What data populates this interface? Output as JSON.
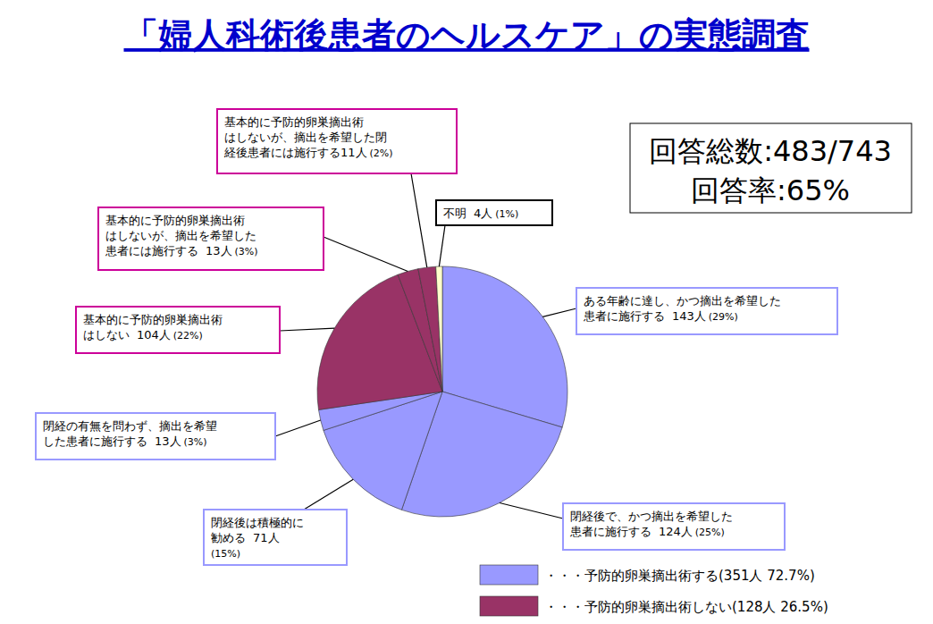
{
  "chart_data": {
    "type": "pie",
    "title": "「婦人科術後患者のヘルスケア」の実態調査",
    "categories": [
      "ある年齢に達し、かつ摘出を希望した\n患者に施行する",
      "閉経後で、かつ摘出を希望した\n患者に施行する",
      "閉経後は積極的に\n勧める",
      "閉経の有無を問わず、摘出を希望\nした患者に施行する",
      "基本的に予防的卵巣摘出術\nはしない",
      "基本的に予防的卵巣摘出術\nはしないが、摘出を希望した\n患者には施行する",
      "基本的に予防的卵巣摘出術\nはしないが、摘出を希望した閉\n経後患者には施行する",
      "不明"
    ],
    "values": [
      143,
      124,
      71,
      13,
      104,
      13,
      11,
      4
    ],
    "value_labels": [
      "143人",
      "124人",
      "71人",
      "13人",
      "104人",
      "13人",
      "11人",
      "4人"
    ],
    "percents": [
      29,
      25,
      15,
      3,
      22,
      3,
      2,
      1
    ],
    "percent_labels": [
      "(29%)",
      "(25%)",
      "(15%)",
      "(3%)",
      "(22%)",
      "(3%)",
      "(2%)",
      "(1%)"
    ],
    "colors": [
      "#9999ff",
      "#9999ff",
      "#9999ff",
      "#9999ff",
      "#993366",
      "#993366",
      "#993366",
      "#ffffcc"
    ],
    "data_labels": true,
    "annotations": [
      "回答総数:483/743",
      "回答率:65%"
    ],
    "legend": "bottom-right",
    "legend_entries": [
      {
        "name": "・・・予防的卵巣摘出術する(351人 72.7%)",
        "color": "#9999ff",
        "value": 351,
        "percent": 72.7
      },
      {
        "name": "・・・予防的卵巣摘出術しない(128人 26.5%)",
        "color": "#993366",
        "value": 128,
        "percent": 26.5
      }
    ]
  }
}
